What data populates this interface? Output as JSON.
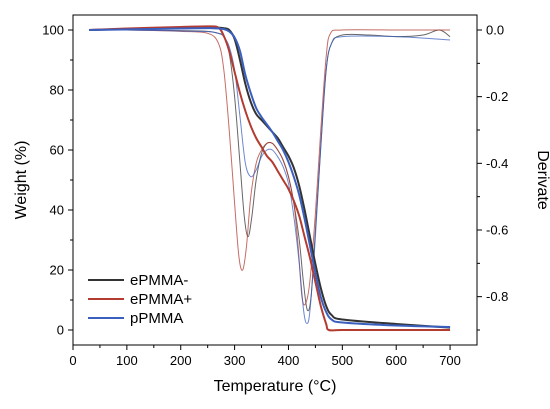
{
  "chart_data": {
    "type": "line",
    "xlabel": "Temperature (°C)",
    "ylabel_left": "Weight (%)",
    "ylabel_right": "Derivate",
    "xlim": [
      0,
      750
    ],
    "ylim_left": [
      -5,
      105
    ],
    "ylim_right": [
      -0.945,
      0.045
    ],
    "xticks": [
      0,
      100,
      200,
      300,
      400,
      500,
      600,
      700
    ],
    "yticks_left": [
      0,
      20,
      40,
      60,
      80,
      100
    ],
    "yticks_right": [
      0.0,
      -0.2,
      -0.4,
      -0.6,
      -0.8
    ],
    "legend_position": "lower-left",
    "series": [
      {
        "name": "ePMMA-",
        "color": "#333333",
        "weight": [
          [
            30,
            100
          ],
          [
            100,
            100.3
          ],
          [
            200,
            100.6
          ],
          [
            260,
            100.8
          ],
          [
            280,
            100.6
          ],
          [
            290,
            100
          ],
          [
            300,
            97
          ],
          [
            310,
            90
          ],
          [
            320,
            82
          ],
          [
            330,
            76
          ],
          [
            340,
            72
          ],
          [
            350,
            70
          ],
          [
            360,
            68
          ],
          [
            370,
            66
          ],
          [
            380,
            64
          ],
          [
            390,
            61
          ],
          [
            400,
            58
          ],
          [
            410,
            54
          ],
          [
            420,
            48
          ],
          [
            430,
            40
          ],
          [
            440,
            31
          ],
          [
            450,
            22
          ],
          [
            460,
            14
          ],
          [
            470,
            8
          ],
          [
            480,
            5
          ],
          [
            500,
            3.5
          ],
          [
            600,
            2
          ],
          [
            700,
            0.8
          ]
        ],
        "derivative": [
          [
            30,
            0
          ],
          [
            100,
            0
          ],
          [
            200,
            -0.002
          ],
          [
            250,
            -0.004
          ],
          [
            270,
            -0.01
          ],
          [
            280,
            -0.02
          ],
          [
            290,
            -0.07
          ],
          [
            300,
            -0.2
          ],
          [
            310,
            -0.4
          ],
          [
            318,
            -0.56
          ],
          [
            325,
            -0.62
          ],
          [
            332,
            -0.56
          ],
          [
            340,
            -0.45
          ],
          [
            350,
            -0.37
          ],
          [
            360,
            -0.34
          ],
          [
            370,
            -0.34
          ],
          [
            380,
            -0.36
          ],
          [
            390,
            -0.39
          ],
          [
            400,
            -0.44
          ],
          [
            410,
            -0.52
          ],
          [
            420,
            -0.63
          ],
          [
            428,
            -0.76
          ],
          [
            435,
            -0.84
          ],
          [
            442,
            -0.8
          ],
          [
            450,
            -0.6
          ],
          [
            460,
            -0.35
          ],
          [
            470,
            -0.12
          ],
          [
            480,
            -0.04
          ],
          [
            500,
            -0.015
          ],
          [
            550,
            -0.015
          ],
          [
            600,
            -0.02
          ],
          [
            650,
            -0.015
          ],
          [
            680,
            0.0
          ],
          [
            700,
            -0.02
          ]
        ]
      },
      {
        "name": "ePMMA+",
        "color": "#b33b30",
        "weight": [
          [
            30,
            100
          ],
          [
            100,
            100.5
          ],
          [
            200,
            101
          ],
          [
            250,
            101.2
          ],
          [
            270,
            100.8
          ],
          [
            280,
            98
          ],
          [
            290,
            93
          ],
          [
            300,
            86
          ],
          [
            310,
            79
          ],
          [
            320,
            73
          ],
          [
            330,
            68
          ],
          [
            340,
            64
          ],
          [
            350,
            61
          ],
          [
            360,
            58
          ],
          [
            370,
            56
          ],
          [
            380,
            53
          ],
          [
            390,
            50
          ],
          [
            400,
            47
          ],
          [
            410,
            43
          ],
          [
            420,
            38
          ],
          [
            430,
            31
          ],
          [
            440,
            24
          ],
          [
            450,
            16
          ],
          [
            460,
            8
          ],
          [
            470,
            2
          ],
          [
            475,
            0
          ],
          [
            500,
            0
          ],
          [
            600,
            0
          ],
          [
            700,
            0
          ]
        ],
        "derivative": [
          [
            30,
            0
          ],
          [
            100,
            0
          ],
          [
            200,
            -0.004
          ],
          [
            250,
            -0.01
          ],
          [
            270,
            -0.04
          ],
          [
            280,
            -0.12
          ],
          [
            290,
            -0.3
          ],
          [
            300,
            -0.52
          ],
          [
            308,
            -0.68
          ],
          [
            315,
            -0.72
          ],
          [
            322,
            -0.65
          ],
          [
            330,
            -0.5
          ],
          [
            340,
            -0.4
          ],
          [
            350,
            -0.36
          ],
          [
            360,
            -0.34
          ],
          [
            370,
            -0.34
          ],
          [
            380,
            -0.36
          ],
          [
            390,
            -0.39
          ],
          [
            400,
            -0.44
          ],
          [
            410,
            -0.52
          ],
          [
            418,
            -0.65
          ],
          [
            425,
            -0.8
          ],
          [
            432,
            -0.82
          ],
          [
            440,
            -0.75
          ],
          [
            450,
            -0.55
          ],
          [
            460,
            -0.3
          ],
          [
            470,
            -0.08
          ],
          [
            478,
            -0.01
          ],
          [
            500,
            0
          ],
          [
            600,
            0
          ],
          [
            700,
            0
          ]
        ]
      },
      {
        "name": "pPMMA",
        "color": "#3a5fbf",
        "weight": [
          [
            30,
            100
          ],
          [
            100,
            100.2
          ],
          [
            200,
            100.5
          ],
          [
            260,
            100.6
          ],
          [
            280,
            100.3
          ],
          [
            290,
            99.5
          ],
          [
            300,
            97.5
          ],
          [
            310,
            93
          ],
          [
            320,
            85
          ],
          [
            330,
            79
          ],
          [
            340,
            74
          ],
          [
            350,
            71
          ],
          [
            360,
            68.5
          ],
          [
            370,
            66
          ],
          [
            380,
            63
          ],
          [
            390,
            60
          ],
          [
            400,
            56
          ],
          [
            410,
            51
          ],
          [
            420,
            45
          ],
          [
            430,
            37
          ],
          [
            440,
            28
          ],
          [
            450,
            19
          ],
          [
            460,
            11
          ],
          [
            470,
            6
          ],
          [
            480,
            3.5
          ],
          [
            500,
            2.5
          ],
          [
            600,
            1.5
          ],
          [
            700,
            1
          ]
        ],
        "derivative": [
          [
            30,
            0
          ],
          [
            100,
            0
          ],
          [
            200,
            -0.003
          ],
          [
            250,
            -0.005
          ],
          [
            270,
            -0.01
          ],
          [
            280,
            -0.02
          ],
          [
            290,
            -0.05
          ],
          [
            300,
            -0.12
          ],
          [
            310,
            -0.26
          ],
          [
            320,
            -0.4
          ],
          [
            330,
            -0.44
          ],
          [
            340,
            -0.42
          ],
          [
            350,
            -0.38
          ],
          [
            360,
            -0.36
          ],
          [
            370,
            -0.36
          ],
          [
            380,
            -0.38
          ],
          [
            390,
            -0.41
          ],
          [
            400,
            -0.46
          ],
          [
            410,
            -0.56
          ],
          [
            420,
            -0.7
          ],
          [
            428,
            -0.84
          ],
          [
            434,
            -0.88
          ],
          [
            440,
            -0.84
          ],
          [
            450,
            -0.62
          ],
          [
            460,
            -0.35
          ],
          [
            470,
            -0.12
          ],
          [
            480,
            -0.04
          ],
          [
            500,
            -0.02
          ],
          [
            600,
            -0.02
          ],
          [
            700,
            -0.03
          ]
        ]
      }
    ]
  }
}
